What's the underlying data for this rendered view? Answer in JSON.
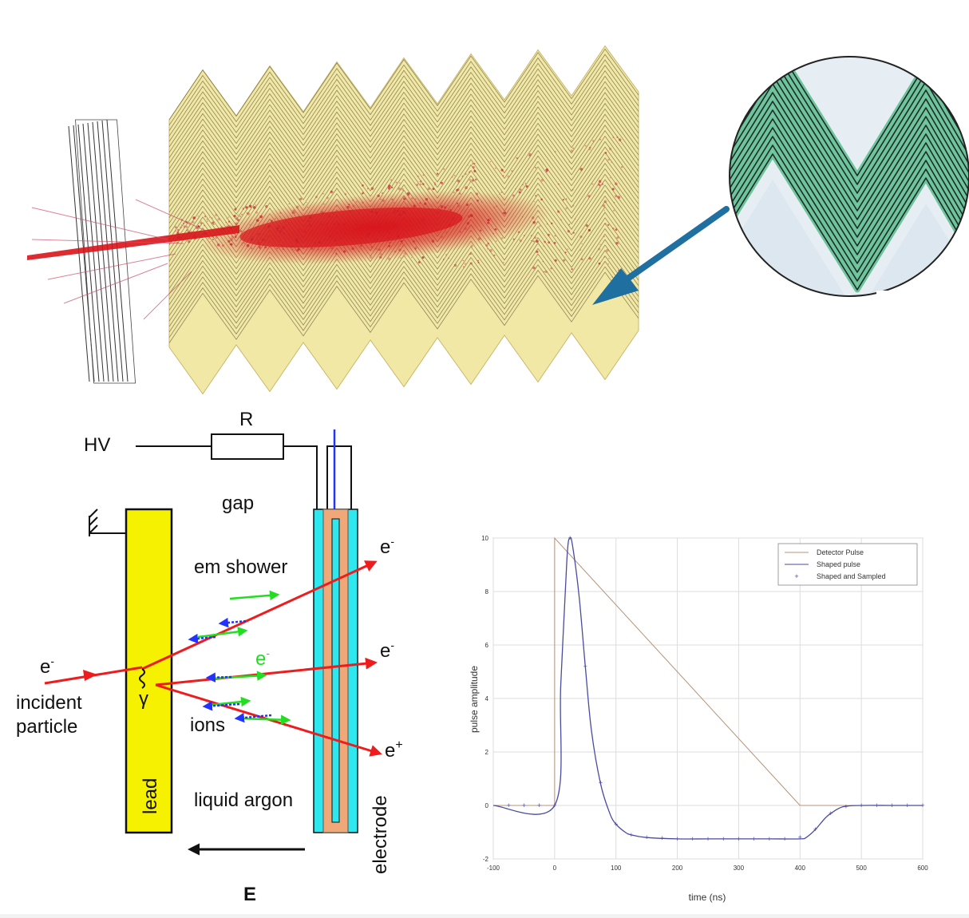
{
  "top_illustration": {
    "subject": "electromagnetic shower in accordion calorimeter",
    "colors": {
      "absorber": "#f2e8a6",
      "shower": "#d8141b",
      "arrow": "#1f6fa0",
      "inset_fill": "#9fd8b5"
    }
  },
  "schematic": {
    "labels": {
      "hv": "HV",
      "resistor": "R",
      "gap": "gap",
      "em_shower": "em shower",
      "electron_in": "e",
      "electron_in_sup": "-",
      "incident_line1": "incident",
      "incident_line2": "particle",
      "gamma": "γ",
      "ions": "ions",
      "lead": "lead",
      "liquid_argon": "liquid argon",
      "electrode": "electrode",
      "field": "E",
      "e_out_top": "e",
      "e_out_top_sup": "-",
      "e_out_mid": "e",
      "e_out_mid_sup": "-",
      "e_green": "e",
      "e_green_sup": "-",
      "e_out_bottom": "e",
      "e_out_bottom_sup": "+"
    },
    "colors": {
      "lead": "#f5f100",
      "electrode_outer": "#2ee8f0",
      "electrode_inner": "#f0a878",
      "track": "#ee1c1c",
      "electron_drift": "#22dd22",
      "ion_drift": "#2233ff"
    }
  },
  "chart_data": {
    "type": "line",
    "title": "",
    "xlabel": "time (ns)",
    "ylabel": "pulse amplitude",
    "xlim": [
      -100,
      600
    ],
    "ylim": [
      -2,
      10
    ],
    "xticks": [
      -100,
      0,
      100,
      200,
      300,
      400,
      500,
      600
    ],
    "yticks": [
      -2,
      0,
      2,
      4,
      6,
      8,
      10
    ],
    "grid": true,
    "legend_position": "top-right",
    "series": [
      {
        "name": "Detector Pulse",
        "color": "#b5937a",
        "style": "line",
        "x": [
          -100,
          0,
          0,
          400,
          400,
          600
        ],
        "y": [
          0,
          0,
          10,
          0,
          0,
          0
        ]
      },
      {
        "name": "Shaped pulse",
        "color": "#4a4aa0",
        "style": "line",
        "x": [
          -100,
          0,
          10,
          20,
          25,
          30,
          40,
          50,
          60,
          75,
          90,
          100,
          115,
          125,
          150,
          200,
          250,
          300,
          350,
          400,
          410,
          425,
          440,
          450,
          470,
          500,
          550,
          600
        ],
        "y": [
          0,
          0,
          4.5,
          9.2,
          10,
          9.6,
          7.8,
          5.2,
          2.8,
          0.8,
          -0.3,
          -0.7,
          -1.0,
          -1.1,
          -1.2,
          -1.25,
          -1.25,
          -1.25,
          -1.25,
          -1.25,
          -1.2,
          -0.9,
          -0.5,
          -0.3,
          -0.05,
          0,
          0,
          0
        ]
      },
      {
        "name": "Shaped and Sampled",
        "color": "#4a4aa0",
        "style": "markers",
        "x": [
          -75,
          -50,
          -25,
          0,
          25,
          50,
          75,
          100,
          125,
          150,
          175,
          200,
          225,
          250,
          275,
          300,
          325,
          350,
          375,
          400,
          425,
          450,
          475,
          500,
          525,
          550,
          575,
          600
        ],
        "y": [
          0,
          0,
          0,
          0,
          10,
          5.2,
          0.85,
          -0.7,
          -1.1,
          -1.2,
          -1.22,
          -1.25,
          -1.25,
          -1.25,
          -1.25,
          -1.25,
          -1.25,
          -1.25,
          -1.25,
          -1.2,
          -0.9,
          -0.3,
          -0.05,
          0,
          0,
          0,
          0,
          0
        ]
      }
    ]
  }
}
